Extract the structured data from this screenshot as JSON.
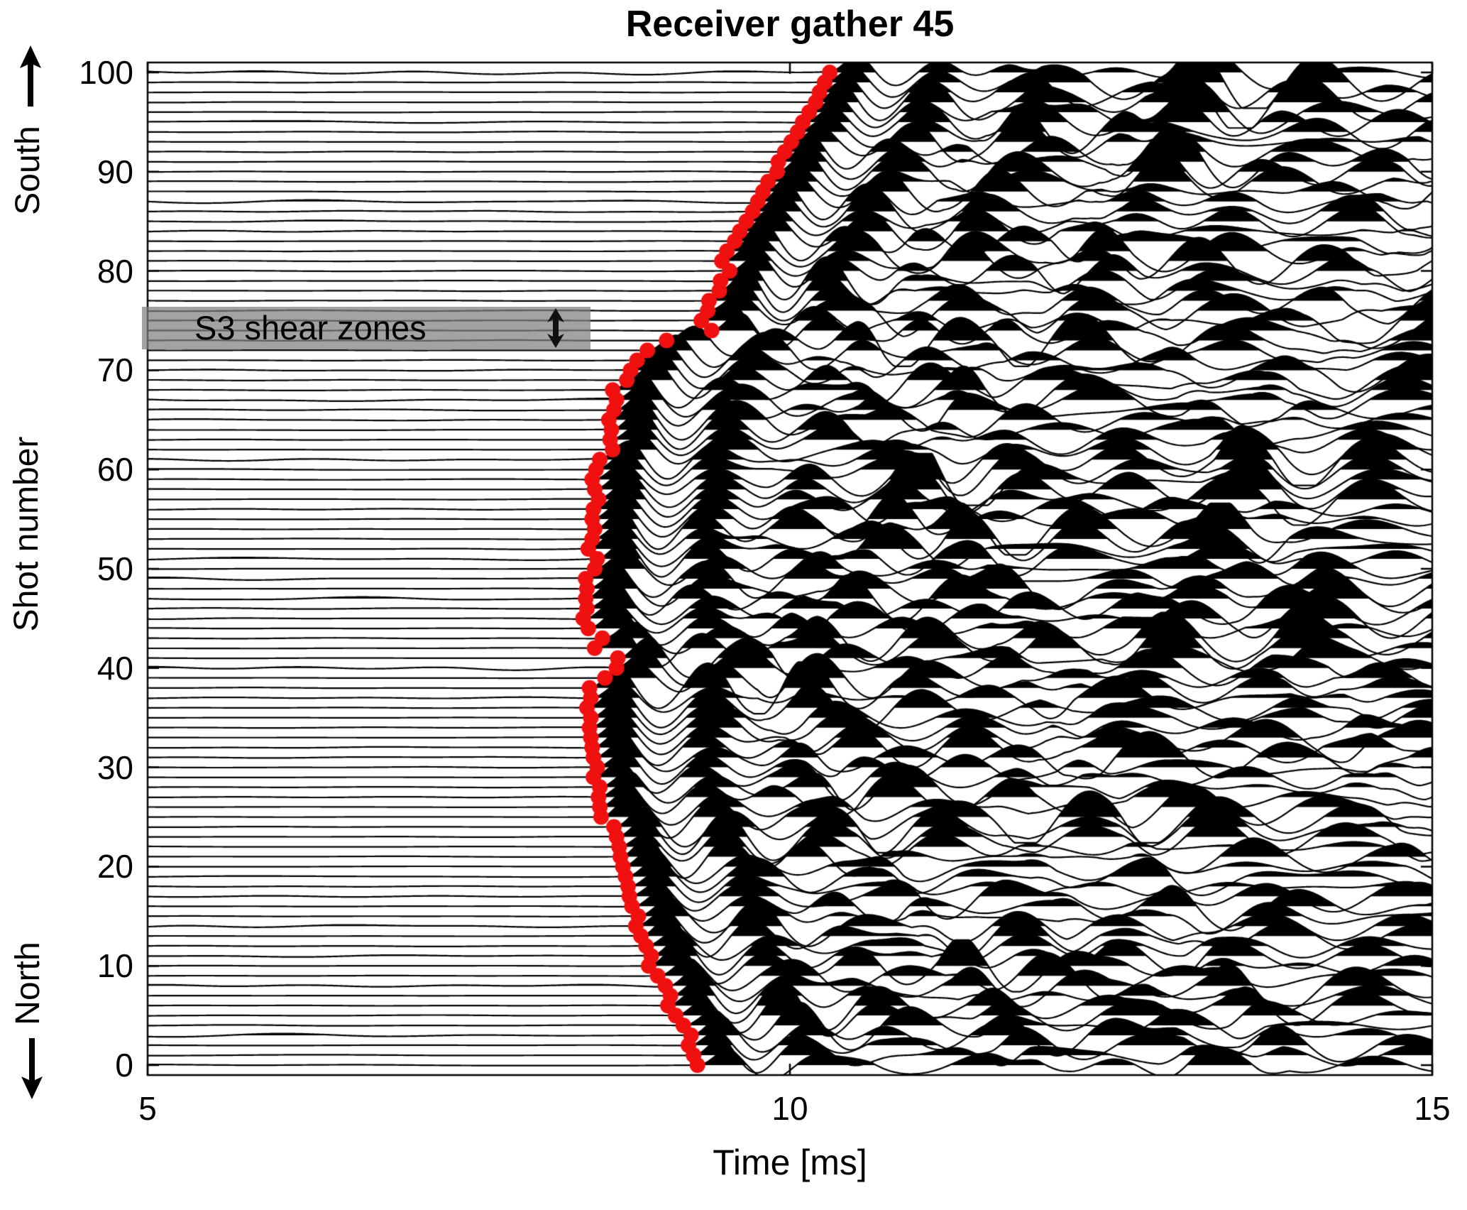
{
  "chart_data": {
    "type": "line",
    "subtype": "seismic_wiggle_variable_area_gather",
    "title": "Receiver gather 45",
    "xlabel": "Time [ms]",
    "ylabel": "Shot number",
    "direction_top": "South",
    "direction_bottom": "North",
    "xlim": [
      5,
      15
    ],
    "ylim": [
      -1,
      101
    ],
    "xticks": [
      5,
      10,
      15
    ],
    "yticks": [
      0,
      10,
      20,
      30,
      40,
      50,
      60,
      70,
      80,
      90,
      100
    ],
    "n_traces": 101,
    "trace_color": "#000000",
    "background_color": "#ffffff",
    "fill_rule": "positive lobes of each wiggle trace filled black",
    "grid": false,
    "first_break_picks": {
      "marker": "filled circle",
      "color": "#f01010",
      "radius_px": 11,
      "shots_start": 0,
      "shots_step": 1,
      "times_ms": [
        9.28,
        9.25,
        9.21,
        9.23,
        9.17,
        9.11,
        9.05,
        9.07,
        9.03,
        8.97,
        8.9,
        8.92,
        8.88,
        8.84,
        8.8,
        8.82,
        8.77,
        8.75,
        8.74,
        8.72,
        8.7,
        8.68,
        8.67,
        8.65,
        8.63,
        8.53,
        8.52,
        8.51,
        8.52,
        8.47,
        8.5,
        8.47,
        8.46,
        8.45,
        8.44,
        8.45,
        8.42,
        8.45,
        8.44,
        8.56,
        8.65,
        8.66,
        8.48,
        8.54,
        8.43,
        8.39,
        8.42,
        8.41,
        8.42,
        8.41,
        8.48,
        8.5,
        8.43,
        8.46,
        8.48,
        8.46,
        8.47,
        8.51,
        8.48,
        8.46,
        8.49,
        8.52,
        8.62,
        8.6,
        8.61,
        8.59,
        8.63,
        8.65,
        8.62,
        8.73,
        8.76,
        8.81,
        8.89,
        9.04,
        9.39,
        9.31,
        9.36,
        9.37,
        9.45,
        9.46,
        9.53,
        9.47,
        9.51,
        9.57,
        9.61,
        9.66,
        9.71,
        9.75,
        9.79,
        9.83,
        9.9,
        9.91,
        9.96,
        10.01,
        10.06,
        10.1,
        10.15,
        10.2,
        10.23,
        10.27,
        10.31
      ]
    },
    "annotation": {
      "label": "S3 shear zones",
      "time_range_ms": [
        5.0,
        8.45
      ],
      "shot_range": [
        72.1,
        76.4
      ],
      "box_color": "rgba(128,128,128,0.72)",
      "arrow": "vertical double-headed extent arrow at right end of box"
    }
  },
  "icons": {
    "south_arrow": "up-arrow",
    "north_arrow": "down-arrow",
    "shear_extent_arrow": "up-down-arrow"
  }
}
